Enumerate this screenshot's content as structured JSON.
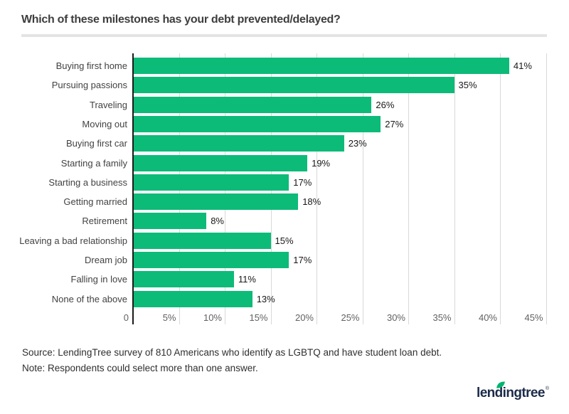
{
  "title": "Which of these milestones has your debt prevented/delayed?",
  "chart_data": {
    "type": "bar",
    "orientation": "horizontal",
    "title": "Which of these milestones has your debt prevented/delayed?",
    "categories": [
      "Buying first home",
      "Pursuing passions",
      "Traveling",
      "Moving out",
      "Buying first car",
      "Starting a family",
      "Starting a business",
      "Getting married",
      "Retirement",
      "Leaving a bad relationship",
      "Dream job",
      "Falling in love",
      "None of the above"
    ],
    "values": [
      41,
      35,
      26,
      27,
      23,
      19,
      17,
      18,
      8,
      15,
      17,
      11,
      13
    ],
    "value_labels": [
      "41%",
      "35%",
      "26%",
      "27%",
      "23%",
      "19%",
      "17%",
      "18%",
      "8%",
      "15%",
      "17%",
      "11%",
      "13%"
    ],
    "x_ticks": [
      {
        "value": 0,
        "label": "0"
      },
      {
        "value": 5,
        "label": "5%"
      },
      {
        "value": 10,
        "label": "10%"
      },
      {
        "value": 15,
        "label": "15%"
      },
      {
        "value": 20,
        "label": "20%"
      },
      {
        "value": 25,
        "label": "25%"
      },
      {
        "value": 30,
        "label": "30%"
      },
      {
        "value": 35,
        "label": "35%"
      },
      {
        "value": 40,
        "label": "40%"
      },
      {
        "value": 45,
        "label": "45%"
      }
    ],
    "xlim": [
      0,
      45
    ],
    "xlabel": "",
    "ylabel": "",
    "grid": "vertical",
    "legend": "none",
    "bar_color": "#0dbb79",
    "grid_color": "#d9d9d9",
    "axis_color": "#1a1a1a"
  },
  "footer": {
    "source": "Source: LendingTree survey of 810 Americans who identify as LGBTQ and have student loan debt.",
    "note": "Note: Respondents could select more than one answer."
  },
  "logo": {
    "text": "lendingtree",
    "mark": "®",
    "color": "#1c2b4a",
    "leaf_color": "#00b56d"
  }
}
